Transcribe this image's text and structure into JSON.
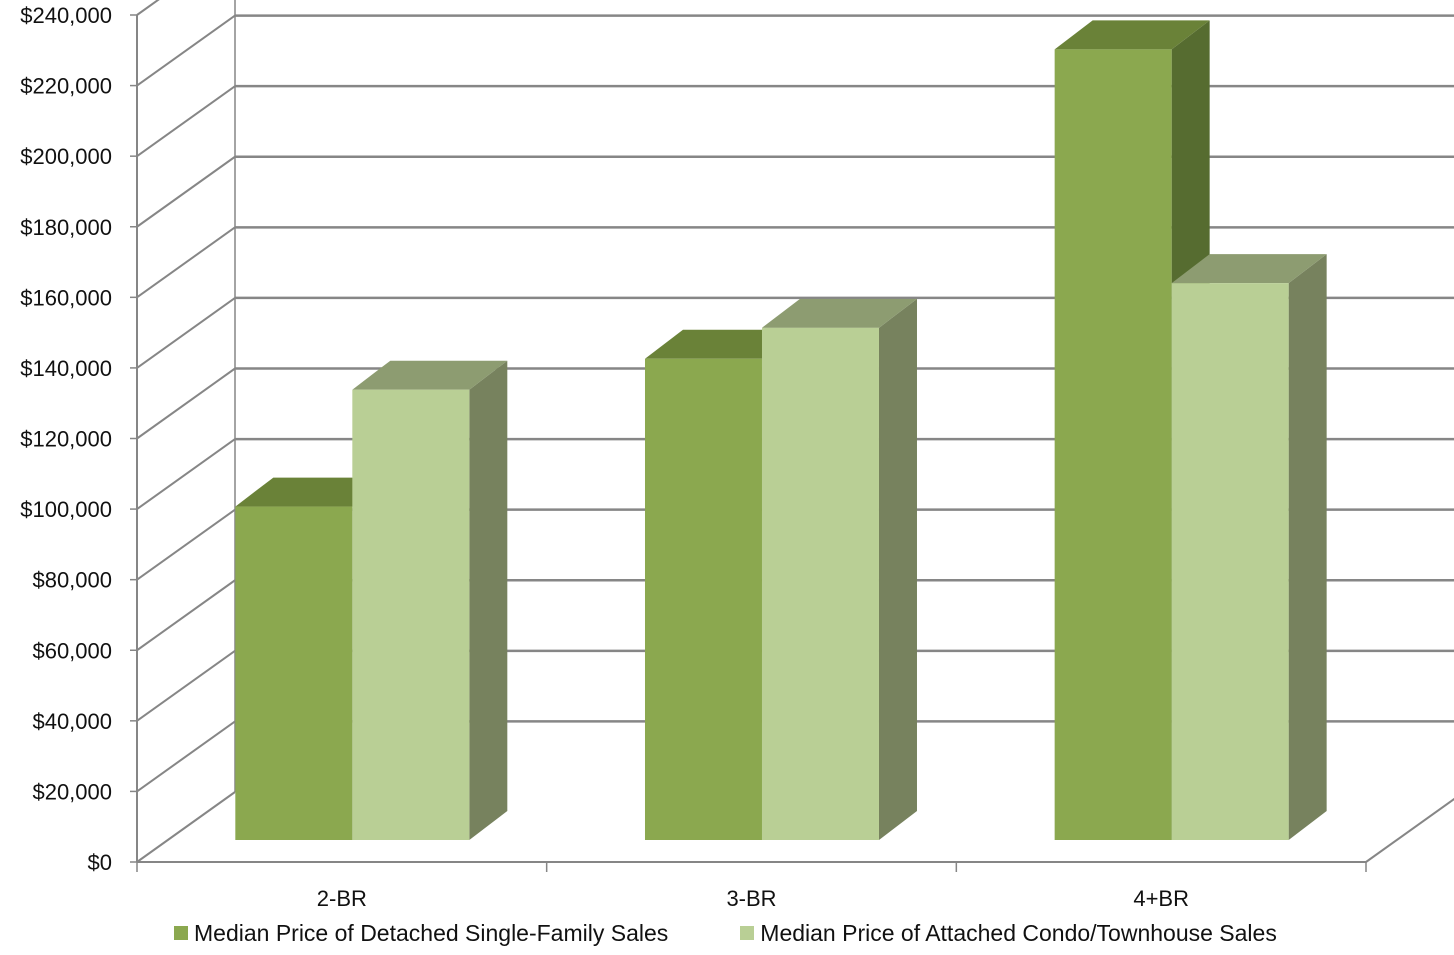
{
  "chart_data": {
    "type": "bar",
    "style": "3d-clustered-column",
    "title": "",
    "xlabel": "",
    "ylabel": "",
    "categories": [
      "2-BR",
      "3-BR",
      "4+BR"
    ],
    "series": [
      {
        "name": "Median Price of Detached Single-Family Sales",
        "values": [
          97000,
          140000,
          230000
        ],
        "color": "#8BA84F"
      },
      {
        "name": "Median Price of Attached Condo/Townhouse Sales",
        "values": [
          131000,
          149000,
          162000
        ],
        "color": "#B9CF95"
      }
    ],
    "ylim": [
      0,
      240000
    ],
    "y_ticks": [
      0,
      20000,
      40000,
      60000,
      80000,
      100000,
      120000,
      140000,
      160000,
      180000,
      200000,
      220000,
      240000
    ],
    "y_tick_labels": [
      "$0",
      "$20,000",
      "$40,000",
      "$60,000",
      "$80,000",
      "$100,000",
      "$120,000",
      "$140,000",
      "$160,000",
      "$180,000",
      "$200,000",
      "$220,000",
      "$240,000"
    ],
    "grid": true,
    "legend_position": "bottom",
    "colors": {
      "series1_front": "#8BA84F",
      "series1_top": "#6A8238",
      "series1_side": "#566C30",
      "series2_front": "#B9CF95",
      "series2_top": "#8D9C71",
      "series2_side": "#77825E",
      "gridline": "#868686"
    }
  }
}
